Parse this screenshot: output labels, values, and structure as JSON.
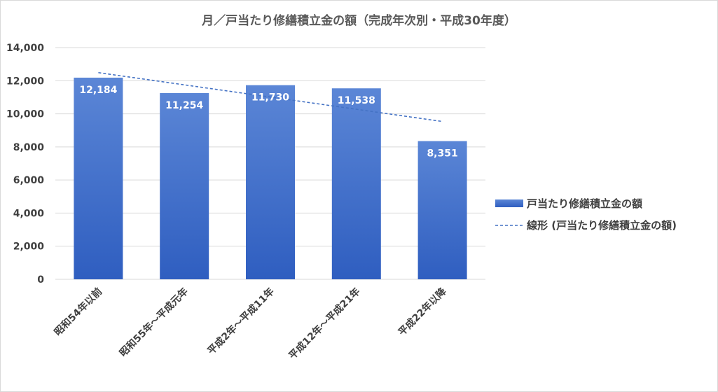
{
  "chart_data": {
    "type": "bar",
    "title": "月／戸当たり修繕積立金の額（完成年次別・平成30年度）",
    "categories": [
      "昭和54年以前",
      "昭和55年～平成元年",
      "平成2年～平成11年",
      "平成12年～平成21年",
      "平成22年以降"
    ],
    "series": [
      {
        "name": "戸当たり修繕積立金の額",
        "values": [
          12184,
          11254,
          11730,
          11538,
          8351
        ],
        "labels": [
          "12,184",
          "11,254",
          "11,730",
          "11,538",
          "8,351"
        ],
        "color": "#4472c4"
      }
    ],
    "trendline": {
      "name": "線形 (戸当たり修繕積立金の額)",
      "type": "linear",
      "color": "#4472c4",
      "style": "dashed"
    },
    "yticks": [
      "0",
      "2,000",
      "4,000",
      "6,000",
      "8,000",
      "10,000",
      "12,000",
      "14,000"
    ],
    "ylim": [
      0,
      14000
    ],
    "xlabel": "",
    "ylabel": "",
    "grid": true,
    "legend": "right"
  }
}
